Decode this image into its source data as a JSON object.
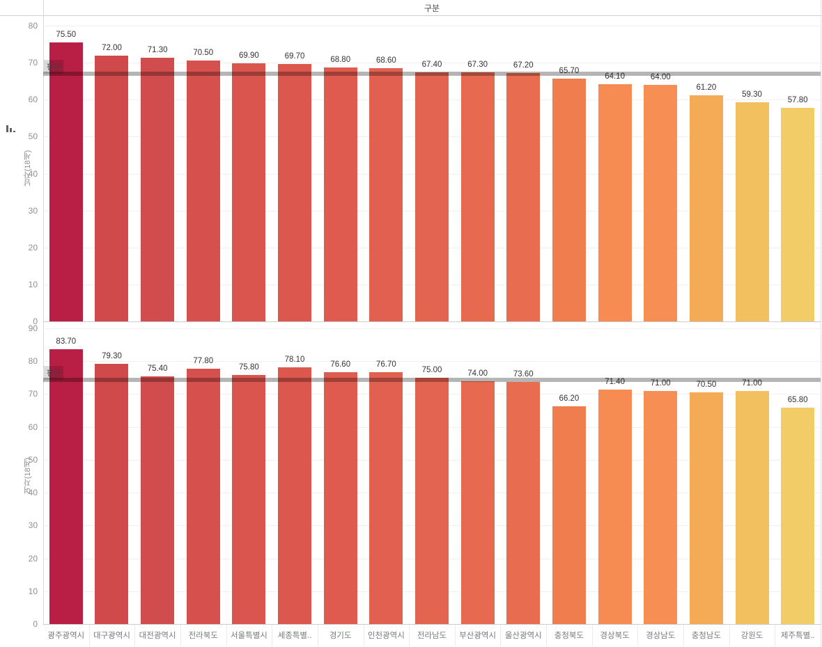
{
  "header": {
    "title": "구분"
  },
  "categories": [
    "광주광역시",
    "대구광역시",
    "대전광역시",
    "전라북도",
    "서울특별시",
    "세종특별..",
    "경기도",
    "인천광역시",
    "전라남도",
    "부산광역시",
    "울산광역시",
    "충청북도",
    "경상북도",
    "경상남도",
    "충청남도",
    "강원도",
    "제주특별.."
  ],
  "bar_colors": [
    "#b91e45",
    "#d04a4b",
    "#d14c4c",
    "#d6514d",
    "#da554e",
    "#dc574e",
    "#df5b4f",
    "#e1604f",
    "#e4654f",
    "#e66950",
    "#e76c50",
    "#ef7d4d",
    "#f78c53",
    "#f78e53",
    "#f5aa56",
    "#f3c05f",
    "#f1cc67"
  ],
  "chart_data": [
    {
      "type": "bar",
      "title": "남자(18세)",
      "ylabel": "남자(18세)",
      "categories": [
        "광주광역시",
        "대구광역시",
        "대전광역시",
        "전라북도",
        "서울특별시",
        "세종특별..",
        "경기도",
        "인천광역시",
        "전라남도",
        "부산광역시",
        "울산광역시",
        "충청북도",
        "경상북도",
        "경상남도",
        "충청남도",
        "강원도",
        "제주특별.."
      ],
      "values": [
        75.5,
        72.0,
        71.3,
        70.5,
        69.9,
        69.7,
        68.8,
        68.6,
        67.4,
        67.3,
        67.2,
        65.7,
        64.1,
        64.0,
        61.2,
        59.3,
        57.8
      ],
      "value_labels": [
        "75.50",
        "72.00",
        "71.30",
        "70.50",
        "69.90",
        "69.70",
        "68.80",
        "68.60",
        "67.40",
        "67.30",
        "67.20",
        "65.70",
        "64.10",
        "64.00",
        "61.20",
        "59.30",
        "57.80"
      ],
      "ylim": [
        0,
        80
      ],
      "yticks": [
        0,
        10,
        20,
        30,
        40,
        50,
        60,
        70,
        80
      ],
      "grid": true,
      "average": 67.08,
      "average_label": "평균",
      "has_sort_icon": true
    },
    {
      "type": "bar",
      "title": "여자(18세)",
      "ylabel": "여자(18세)",
      "categories": [
        "광주광역시",
        "대구광역시",
        "대전광역시",
        "전라북도",
        "서울특별시",
        "세종특별..",
        "경기도",
        "인천광역시",
        "전라남도",
        "부산광역시",
        "울산광역시",
        "충청북도",
        "경상북도",
        "경상남도",
        "충청남도",
        "강원도",
        "제주특별.."
      ],
      "values": [
        83.7,
        79.3,
        75.4,
        77.8,
        75.8,
        78.1,
        76.6,
        76.7,
        75.0,
        74.0,
        73.6,
        66.2,
        71.4,
        71.0,
        70.5,
        71.0,
        65.8
      ],
      "value_labels": [
        "83.70",
        "79.30",
        "75.40",
        "77.80",
        "75.80",
        "78.10",
        "76.60",
        "76.70",
        "75.00",
        "74.00",
        "73.60",
        "66.20",
        "71.40",
        "71.00",
        "70.50",
        "71.00",
        "65.80"
      ],
      "ylim": [
        0,
        90
      ],
      "yticks": [
        0,
        10,
        20,
        30,
        40,
        50,
        60,
        70,
        80,
        90
      ],
      "grid": true,
      "average": 74.23,
      "average_label": "평균",
      "has_sort_icon": false
    }
  ]
}
